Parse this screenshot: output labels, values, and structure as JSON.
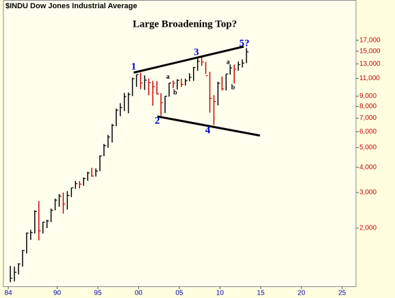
{
  "chart_data": {
    "type": "ohlc",
    "subtitle": "$INDU Dow Jones Industrial Average",
    "title": "Large Broadening Top?",
    "log_scale": true,
    "up_color": "#000000",
    "down_color": "#cc0000",
    "x": [
      1984.25,
      1984.75,
      1985.25,
      1985.75,
      1986.25,
      1986.75,
      1987.25,
      1987.75,
      1988.25,
      1988.75,
      1989.25,
      1989.75,
      1990.25,
      1990.75,
      1991.25,
      1991.75,
      1992.25,
      1992.75,
      1993.25,
      1993.75,
      1994.25,
      1994.75,
      1995.25,
      1995.75,
      1996.25,
      1996.75,
      1997.25,
      1997.75,
      1998.25,
      1998.75,
      1999.25,
      1999.75,
      2000.25,
      2000.75,
      2001.25,
      2001.75,
      2002.25,
      2002.75,
      2003.25,
      2003.75,
      2004.25,
      2004.75,
      2005.25,
      2005.75,
      2006.25,
      2006.75,
      2007.25,
      2007.75,
      2008.25,
      2008.75,
      2009.25,
      2009.75,
      2010.25,
      2010.75,
      2011.25,
      2011.75,
      2012.25,
      2012.75,
      2013.25
    ],
    "high": [
      1300,
      1290,
      1340,
      1560,
      1900,
      1960,
      2450,
      2720,
      2150,
      2200,
      2500,
      2800,
      2950,
      3000,
      3050,
      3170,
      3420,
      3420,
      3560,
      3800,
      3980,
      3950,
      4580,
      5220,
      5780,
      6560,
      7800,
      8300,
      9340,
      9380,
      11100,
      11500,
      11750,
      11400,
      11000,
      10700,
      10670,
      9300,
      9000,
      10460,
      10750,
      10900,
      10980,
      10980,
      11670,
      12530,
      14000,
      14200,
      13280,
      11870,
      9090,
      10600,
      11260,
      11600,
      12900,
      12900,
      13340,
      13660,
      15540
    ],
    "low": [
      1080,
      1090,
      1180,
      1290,
      1500,
      1750,
      1880,
      1740,
      1880,
      2000,
      2140,
      2450,
      2550,
      2360,
      2470,
      2850,
      3130,
      3140,
      3240,
      3430,
      3590,
      3600,
      3830,
      4540,
      5000,
      5300,
      6390,
      7160,
      7580,
      7400,
      9000,
      10000,
      9730,
      9650,
      9100,
      8060,
      9150,
      7200,
      7420,
      8950,
      9850,
      9700,
      10000,
      10150,
      10660,
      10700,
      12000,
      12700,
      11600,
      7450,
      6470,
      8100,
      9600,
      9600,
      11500,
      10400,
      12000,
      12470,
      13100
    ],
    "close": [
      1130,
      1210,
      1330,
      1550,
      1890,
      1900,
      2420,
      1940,
      2140,
      2170,
      2450,
      2750,
      2880,
      2630,
      2900,
      3170,
      3320,
      3300,
      3520,
      3750,
      3620,
      3830,
      4550,
      5120,
      5650,
      6450,
      7670,
      7900,
      8950,
      9180,
      10970,
      11500,
      10450,
      10790,
      10500,
      10020,
      9240,
      8340,
      8990,
      10450,
      10440,
      10780,
      10270,
      10720,
      11150,
      12460,
      13400,
      13260,
      11350,
      8780,
      8450,
      10430,
      9770,
      11580,
      12410,
      12220,
      12880,
      13100,
      14900
    ],
    "xlim": [
      1983.4,
      2026.7
    ],
    "ylim": [
      1030,
      26900
    ],
    "xticks": [
      {
        "value": 1984,
        "label": "84"
      },
      {
        "value": 1990,
        "label": "90"
      },
      {
        "value": 1995,
        "label": "95"
      },
      {
        "value": 2000,
        "label": "00"
      },
      {
        "value": 2005,
        "label": "05"
      },
      {
        "value": 2010,
        "label": "10"
      },
      {
        "value": 2015,
        "label": "15"
      },
      {
        "value": 2020,
        "label": "20"
      },
      {
        "value": 2025,
        "label": "25"
      }
    ],
    "yticks": [
      {
        "value": 2000,
        "label": "2,000"
      },
      {
        "value": 3000,
        "label": "3,000"
      },
      {
        "value": 4000,
        "label": "4,000"
      },
      {
        "value": 5000,
        "label": "5,000"
      },
      {
        "value": 6000,
        "label": "6,000"
      },
      {
        "value": 7000,
        "label": "7,000"
      },
      {
        "value": 8000,
        "label": "8,000"
      },
      {
        "value": 9000,
        "label": "9,000"
      },
      {
        "value": 11000,
        "label": "11,000"
      },
      {
        "value": 13000,
        "label": "13,000"
      },
      {
        "value": 15000,
        "label": "15,000"
      },
      {
        "value": 17000,
        "label": "17,000"
      }
    ],
    "trendlines": [
      {
        "points": [
          [
            1999.4,
            11760
          ],
          [
            2012.9,
            15820
          ]
        ]
      },
      {
        "points": [
          [
            2002.3,
            7140
          ],
          [
            2014.9,
            5740
          ]
        ]
      }
    ],
    "annotations": [
      {
        "text": "1",
        "x": 1999.4,
        "y": 12520,
        "color": "#0000cc"
      },
      {
        "text": "2",
        "x": 2002.3,
        "y": 6760,
        "color": "#0000cc"
      },
      {
        "text": "3",
        "x": 2007.1,
        "y": 14750,
        "color": "#0000cc"
      },
      {
        "text": "4",
        "x": 2008.5,
        "y": 6060,
        "color": "#0000cc"
      },
      {
        "text": "5?",
        "x": 2013.0,
        "y": 16320,
        "color": "#0000cc"
      },
      {
        "text": "a",
        "x": 2003.6,
        "y": 11140,
        "color": "#000000"
      },
      {
        "text": "b",
        "x": 2004.5,
        "y": 9310,
        "color": "#000000"
      },
      {
        "text": "a",
        "x": 2011.0,
        "y": 13220,
        "color": "#000000"
      },
      {
        "text": "b",
        "x": 2011.6,
        "y": 9900,
        "color": "#000000"
      }
    ]
  }
}
